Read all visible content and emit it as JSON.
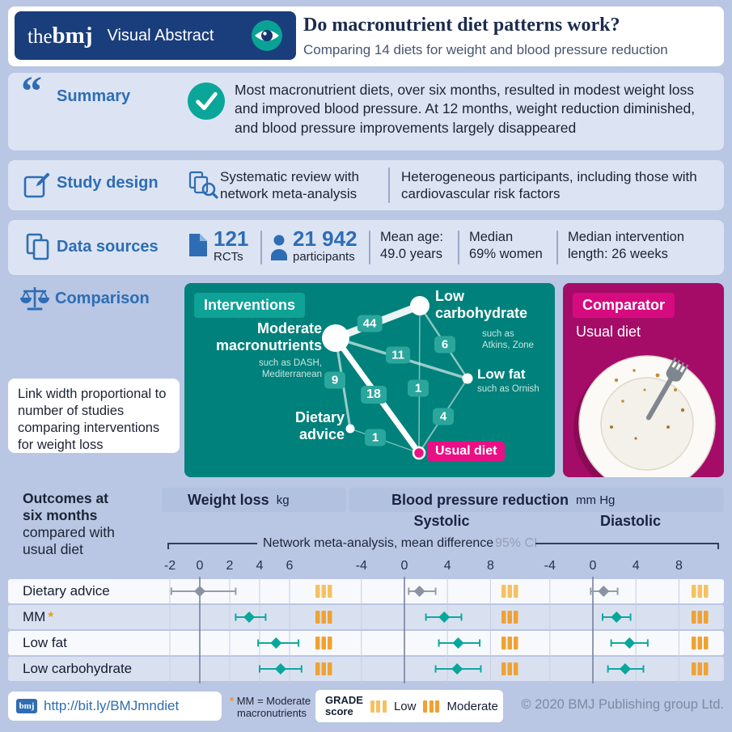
{
  "colors": {
    "background": "#b9c6e4",
    "band": "#dce4f3",
    "bmj_blue": "#2e6db4",
    "navy": "#1a3e7c",
    "title_navy": "#1c2b4d",
    "teal_panel": "#00817b",
    "teal_chip": "#0fa296",
    "teal_accent": "#0aa79c",
    "magenta_panel": "#a50c67",
    "magenta_chip": "#d60b80",
    "pink": "#ea0f85",
    "header_band": "#b3c1e0",
    "row_light": "#f7f9fd",
    "row_shaded": "#d9e1f1",
    "grade_low": "#f5c162",
    "grade_moderate": "#efa232",
    "forest_teal": "#07a89b",
    "forest_teal_line": "#10a89d",
    "forest_gray": "#8b93a3",
    "forest_gray_line": "#959dac",
    "grid": "#c6cfe3",
    "zero_line": "#76819c",
    "tick_text": "#28324a"
  },
  "icons": {
    "quote": "“"
  },
  "header": {
    "logo_prefix": "the",
    "logo_main": "bmj",
    "badge": "Visual Abstract",
    "title": "Do macronutrient diet patterns work?",
    "subtitle": "Comparing 14 diets for weight and blood pressure reduction"
  },
  "summary": {
    "label": "Summary",
    "text": "Most macronutrient diets, over six months, resulted in modest weight loss and improved blood pressure. At 12 months, weight reduction diminished, and blood pressure improvements largely disappeared"
  },
  "study_design": {
    "label": "Study design",
    "method": "Systematic review with network meta-analysis",
    "population": "Heterogeneous participants, including those with cardiovascular risk factors"
  },
  "data_sources": {
    "label": "Data sources",
    "rcts": {
      "value": "121",
      "unit": "RCTs"
    },
    "participants": {
      "value": "21 942",
      "unit": "participants"
    },
    "stats": [
      {
        "line1": "Mean age:",
        "line2": "49.0 years"
      },
      {
        "line1": "Median",
        "line2": "69% women"
      },
      {
        "line1": "Median intervention",
        "line2": "length: 26 weeks"
      }
    ]
  },
  "comparison": {
    "label": "Comparison",
    "note": "Link width proportional to number of studies comparing interventions for weight loss",
    "interventions_title": "Interventions",
    "nodes": {
      "mm": {
        "line1": "Moderate",
        "line2": "macronutrients",
        "sub1": "such as DASH,",
        "sub2": "Mediterranean"
      },
      "lc": {
        "line1": "Low",
        "line2": "carbohydrate",
        "sub1": "such as",
        "sub2": "Atkins, Zone"
      },
      "lf": {
        "line1": "Low fat",
        "sub1": "such as Ornish"
      },
      "da": {
        "line1": "Dietary",
        "line2": "advice"
      },
      "ud": {
        "label": "Usual diet"
      }
    },
    "links": {
      "mm_lc": "44",
      "mm_lf": "11",
      "lc_lf": "6",
      "mm_da": "9",
      "mm_ud": "18",
      "lc_ud": "1",
      "lf_ud": "4",
      "da_ud": "1"
    },
    "comparator_title": "Comparator",
    "comparator_text": "Usual diet"
  },
  "outcomes": {
    "intro": {
      "bold1": "Outcomes at",
      "bold2": "six months",
      "rest1": "compared with",
      "rest2": "usual diet"
    },
    "weight_header": "Weight loss",
    "weight_unit": "kg",
    "bp_header": "Blood pressure reduction",
    "bp_unit": "mm Hg",
    "systolic_label": "Systolic",
    "diastolic_label": "Diastolic",
    "caption": "Network meta-analysis, mean difference",
    "ci_label": "95% CI",
    "rows": [
      {
        "label": "Dietary advice"
      },
      {
        "label": "MM",
        "asterisk": "*"
      },
      {
        "label": "Low fat"
      },
      {
        "label": "Low carbohydrate"
      }
    ]
  },
  "chart_data": {
    "type": "forest",
    "title": "Outcomes at six months compared with usual diet",
    "rows": [
      "Dietary advice",
      "Moderate macronutrients (MM)",
      "Low fat",
      "Low carbohydrate"
    ],
    "row_colors": [
      "gray",
      "teal",
      "teal",
      "teal"
    ],
    "panels": [
      {
        "name": "Weight loss",
        "unit": "kg",
        "ticks": [
          -2,
          0,
          2,
          4,
          6
        ],
        "range": [
          -3,
          7.8
        ],
        "estimates": [
          {
            "mean": 0.0,
            "lo": -1.9,
            "hi": 2.4,
            "grade": "low"
          },
          {
            "mean": 3.3,
            "lo": 2.4,
            "hi": 4.4,
            "grade": "moderate"
          },
          {
            "mean": 5.1,
            "lo": 3.9,
            "hi": 6.6,
            "grade": "moderate"
          },
          {
            "mean": 5.4,
            "lo": 4.0,
            "hi": 6.8,
            "grade": "moderate"
          }
        ]
      },
      {
        "name": "Systolic",
        "unit": "mm Hg",
        "ticks": [
          -4,
          0,
          4,
          8
        ],
        "range": [
          -5,
          10.5
        ],
        "estimates": [
          {
            "mean": 1.4,
            "lo": 0.4,
            "hi": 2.9,
            "grade": "low"
          },
          {
            "mean": 3.7,
            "lo": 2.0,
            "hi": 5.3,
            "grade": "moderate"
          },
          {
            "mean": 5.0,
            "lo": 3.2,
            "hi": 7.0,
            "grade": "moderate"
          },
          {
            "mean": 4.9,
            "lo": 2.9,
            "hi": 7.1,
            "grade": "moderate"
          }
        ]
      },
      {
        "name": "Diastolic",
        "unit": "mm Hg",
        "ticks": [
          -4,
          0,
          4,
          8
        ],
        "range": [
          -5,
          10.5
        ],
        "estimates": [
          {
            "mean": 1.0,
            "lo": -0.2,
            "hi": 2.3,
            "grade": "low"
          },
          {
            "mean": 2.2,
            "lo": 0.9,
            "hi": 3.5,
            "grade": "moderate"
          },
          {
            "mean": 3.4,
            "lo": 1.7,
            "hi": 5.1,
            "grade": "moderate"
          },
          {
            "mean": 3.0,
            "lo": 1.4,
            "hi": 4.7,
            "grade": "moderate"
          }
        ]
      }
    ],
    "network": {
      "note": "Link width proportional to number of studies comparing interventions for weight loss",
      "nodes": [
        "Moderate macronutrients",
        "Low carbohydrate",
        "Low fat",
        "Dietary advice",
        "Usual diet"
      ],
      "links": [
        {
          "a": "Moderate macronutrients",
          "b": "Low carbohydrate",
          "studies": 44
        },
        {
          "a": "Moderate macronutrients",
          "b": "Low fat",
          "studies": 11
        },
        {
          "a": "Low carbohydrate",
          "b": "Low fat",
          "studies": 6
        },
        {
          "a": "Moderate macronutrients",
          "b": "Dietary advice",
          "studies": 9
        },
        {
          "a": "Moderate macronutrients",
          "b": "Usual diet",
          "studies": 18
        },
        {
          "a": "Low carbohydrate",
          "b": "Usual diet",
          "studies": 1
        },
        {
          "a": "Low fat",
          "b": "Usual diet",
          "studies": 4
        },
        {
          "a": "Dietary advice",
          "b": "Usual diet",
          "studies": 1
        }
      ]
    }
  },
  "footer": {
    "logo": "bmj",
    "link": "http://bit.ly/BMJmndiet",
    "footnote_marker": "*",
    "footnote_line1": "MM = Moderate",
    "footnote_line2": "macronutrients",
    "grade_label1": "GRADE",
    "grade_label2": "score",
    "legend_low": "Low",
    "legend_moderate": "Moderate",
    "copyright": "© 2020 BMJ Publishing group Ltd."
  }
}
